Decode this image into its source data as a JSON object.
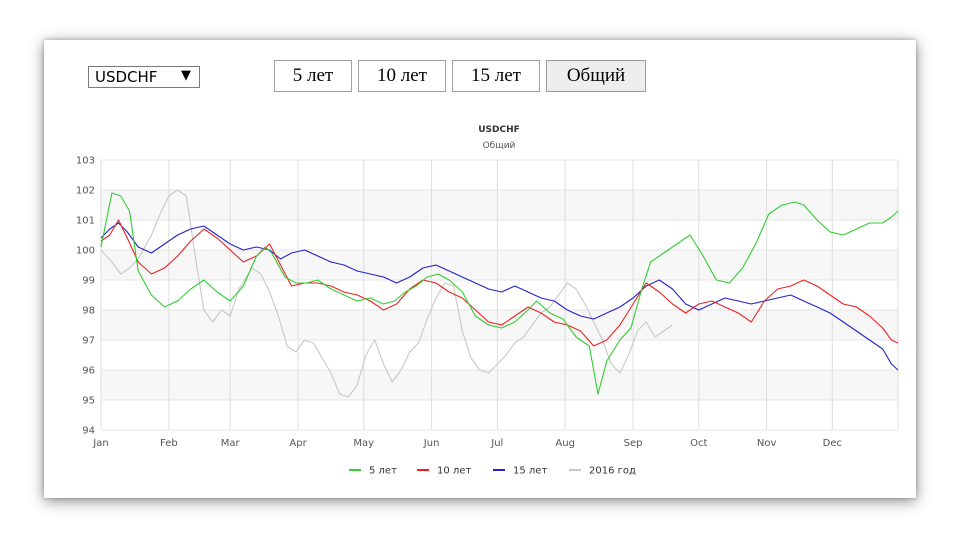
{
  "controls": {
    "symbol_select": {
      "value": "USDCHF",
      "arrow": "▼"
    },
    "period_buttons": [
      {
        "label": "5 лет",
        "active": false
      },
      {
        "label": "10 лет",
        "active": false
      },
      {
        "label": "15 лет",
        "active": false
      },
      {
        "label": "Общий",
        "active": true
      }
    ]
  },
  "chart_data": {
    "type": "line",
    "title": "USDCHF",
    "subtitle": "Общий",
    "xlabel": "",
    "ylabel": "",
    "x_tick_labels": [
      "Jan",
      "Feb",
      "Mar",
      "Apr",
      "May",
      "Jun",
      "Jul",
      "Aug",
      "Sep",
      "Oct",
      "Nov",
      "Dec"
    ],
    "y_ticks": [
      94,
      95,
      96,
      97,
      98,
      99,
      100,
      101,
      102,
      103
    ],
    "ylim": [
      94,
      103
    ],
    "xlim": [
      1,
      365
    ],
    "grid": true,
    "legend_position": "bottom",
    "series": [
      {
        "name": "5 лет",
        "color": "#33cc33",
        "points": [
          [
            1,
            100.1
          ],
          [
            6,
            101.9
          ],
          [
            10,
            101.8
          ],
          [
            14,
            101.3
          ],
          [
            18,
            99.3
          ],
          [
            24,
            98.5
          ],
          [
            30,
            98.1
          ],
          [
            36,
            98.3
          ],
          [
            42,
            98.7
          ],
          [
            48,
            99.0
          ],
          [
            54,
            98.6
          ],
          [
            60,
            98.3
          ],
          [
            66,
            98.8
          ],
          [
            72,
            99.8
          ],
          [
            76,
            100.1
          ],
          [
            79,
            99.9
          ],
          [
            85,
            99.1
          ],
          [
            90,
            98.9
          ],
          [
            95,
            98.9
          ],
          [
            100,
            99.0
          ],
          [
            106,
            98.7
          ],
          [
            112,
            98.5
          ],
          [
            118,
            98.3
          ],
          [
            124,
            98.4
          ],
          [
            130,
            98.2
          ],
          [
            135,
            98.3
          ],
          [
            140,
            98.6
          ],
          [
            145,
            98.8
          ],
          [
            150,
            99.1
          ],
          [
            155,
            99.2
          ],
          [
            160,
            99.0
          ],
          [
            166,
            98.6
          ],
          [
            172,
            97.8
          ],
          [
            178,
            97.5
          ],
          [
            184,
            97.4
          ],
          [
            190,
            97.6
          ],
          [
            196,
            98.0
          ],
          [
            200,
            98.3
          ],
          [
            206,
            97.9
          ],
          [
            212,
            97.7
          ],
          [
            218,
            97.1
          ],
          [
            224,
            96.8
          ],
          [
            228,
            95.2
          ],
          [
            232,
            96.3
          ],
          [
            238,
            97.0
          ],
          [
            243,
            97.4
          ],
          [
            248,
            98.7
          ],
          [
            252,
            99.6
          ],
          [
            258,
            99.9
          ],
          [
            264,
            100.2
          ],
          [
            270,
            100.5
          ],
          [
            276,
            99.8
          ],
          [
            282,
            99.0
          ],
          [
            288,
            98.9
          ],
          [
            294,
            99.4
          ],
          [
            300,
            100.2
          ],
          [
            306,
            101.2
          ],
          [
            312,
            101.5
          ],
          [
            318,
            101.6
          ],
          [
            322,
            101.5
          ],
          [
            328,
            101.0
          ],
          [
            334,
            100.6
          ],
          [
            340,
            100.5
          ],
          [
            346,
            100.7
          ],
          [
            352,
            100.9
          ],
          [
            358,
            100.9
          ],
          [
            362,
            101.1
          ],
          [
            365,
            101.3
          ]
        ]
      },
      {
        "name": "10 лет",
        "color": "#ee2222",
        "points": [
          [
            1,
            100.3
          ],
          [
            5,
            100.5
          ],
          [
            9,
            101.0
          ],
          [
            13,
            100.4
          ],
          [
            18,
            99.6
          ],
          [
            24,
            99.2
          ],
          [
            30,
            99.4
          ],
          [
            36,
            99.8
          ],
          [
            42,
            100.3
          ],
          [
            48,
            100.7
          ],
          [
            54,
            100.4
          ],
          [
            60,
            100.0
          ],
          [
            66,
            99.6
          ],
          [
            72,
            99.8
          ],
          [
            78,
            100.2
          ],
          [
            83,
            99.5
          ],
          [
            88,
            98.8
          ],
          [
            94,
            98.9
          ],
          [
            100,
            98.9
          ],
          [
            106,
            98.8
          ],
          [
            112,
            98.6
          ],
          [
            118,
            98.5
          ],
          [
            124,
            98.3
          ],
          [
            130,
            98.0
          ],
          [
            136,
            98.2
          ],
          [
            142,
            98.7
          ],
          [
            148,
            99.0
          ],
          [
            154,
            98.9
          ],
          [
            160,
            98.6
          ],
          [
            166,
            98.4
          ],
          [
            172,
            98.0
          ],
          [
            178,
            97.6
          ],
          [
            184,
            97.5
          ],
          [
            190,
            97.8
          ],
          [
            196,
            98.1
          ],
          [
            202,
            97.9
          ],
          [
            208,
            97.6
          ],
          [
            214,
            97.5
          ],
          [
            220,
            97.3
          ],
          [
            226,
            96.8
          ],
          [
            232,
            97.0
          ],
          [
            238,
            97.5
          ],
          [
            244,
            98.2
          ],
          [
            250,
            98.9
          ],
          [
            256,
            98.6
          ],
          [
            262,
            98.2
          ],
          [
            268,
            97.9
          ],
          [
            274,
            98.2
          ],
          [
            280,
            98.3
          ],
          [
            286,
            98.1
          ],
          [
            292,
            97.9
          ],
          [
            298,
            97.6
          ],
          [
            304,
            98.3
          ],
          [
            310,
            98.7
          ],
          [
            316,
            98.8
          ],
          [
            322,
            99.0
          ],
          [
            328,
            98.8
          ],
          [
            334,
            98.5
          ],
          [
            340,
            98.2
          ],
          [
            346,
            98.1
          ],
          [
            352,
            97.8
          ],
          [
            358,
            97.4
          ],
          [
            362,
            97.0
          ],
          [
            365,
            96.9
          ]
        ]
      },
      {
        "name": "15 лет",
        "color": "#2222cc",
        "points": [
          [
            1,
            100.4
          ],
          [
            5,
            100.7
          ],
          [
            9,
            100.9
          ],
          [
            13,
            100.6
          ],
          [
            18,
            100.1
          ],
          [
            24,
            99.9
          ],
          [
            30,
            100.2
          ],
          [
            36,
            100.5
          ],
          [
            42,
            100.7
          ],
          [
            48,
            100.8
          ],
          [
            54,
            100.5
          ],
          [
            60,
            100.2
          ],
          [
            66,
            100.0
          ],
          [
            72,
            100.1
          ],
          [
            78,
            100.0
          ],
          [
            83,
            99.7
          ],
          [
            88,
            99.9
          ],
          [
            94,
            100.0
          ],
          [
            100,
            99.8
          ],
          [
            106,
            99.6
          ],
          [
            112,
            99.5
          ],
          [
            118,
            99.3
          ],
          [
            124,
            99.2
          ],
          [
            130,
            99.1
          ],
          [
            136,
            98.9
          ],
          [
            142,
            99.1
          ],
          [
            148,
            99.4
          ],
          [
            154,
            99.5
          ],
          [
            160,
            99.3
          ],
          [
            166,
            99.1
          ],
          [
            172,
            98.9
          ],
          [
            178,
            98.7
          ],
          [
            184,
            98.6
          ],
          [
            190,
            98.8
          ],
          [
            196,
            98.6
          ],
          [
            202,
            98.4
          ],
          [
            208,
            98.3
          ],
          [
            214,
            98.0
          ],
          [
            220,
            97.8
          ],
          [
            226,
            97.7
          ],
          [
            232,
            97.9
          ],
          [
            238,
            98.1
          ],
          [
            244,
            98.4
          ],
          [
            250,
            98.8
          ],
          [
            256,
            99.0
          ],
          [
            262,
            98.7
          ],
          [
            268,
            98.2
          ],
          [
            274,
            98.0
          ],
          [
            280,
            98.2
          ],
          [
            286,
            98.4
          ],
          [
            292,
            98.3
          ],
          [
            298,
            98.2
          ],
          [
            304,
            98.3
          ],
          [
            310,
            98.4
          ],
          [
            316,
            98.5
          ],
          [
            322,
            98.3
          ],
          [
            328,
            98.1
          ],
          [
            334,
            97.9
          ],
          [
            340,
            97.6
          ],
          [
            346,
            97.3
          ],
          [
            352,
            97.0
          ],
          [
            358,
            96.7
          ],
          [
            362,
            96.2
          ],
          [
            365,
            96.0
          ]
        ]
      },
      {
        "name": "2016 год",
        "color": "#c8c8c8",
        "points": [
          [
            1,
            100.0
          ],
          [
            6,
            99.6
          ],
          [
            10,
            99.2
          ],
          [
            14,
            99.4
          ],
          [
            18,
            99.7
          ],
          [
            24,
            100.5
          ],
          [
            28,
            101.2
          ],
          [
            32,
            101.8
          ],
          [
            36,
            102.0
          ],
          [
            40,
            101.8
          ],
          [
            44,
            99.8
          ],
          [
            48,
            98.0
          ],
          [
            52,
            97.6
          ],
          [
            56,
            98.0
          ],
          [
            60,
            97.8
          ],
          [
            64,
            98.7
          ],
          [
            70,
            99.4
          ],
          [
            74,
            99.2
          ],
          [
            78,
            98.6
          ],
          [
            82,
            97.8
          ],
          [
            86,
            96.8
          ],
          [
            90,
            96.6
          ],
          [
            94,
            97.0
          ],
          [
            98,
            96.9
          ],
          [
            102,
            96.4
          ],
          [
            106,
            95.9
          ],
          [
            110,
            95.2
          ],
          [
            114,
            95.1
          ],
          [
            118,
            95.5
          ],
          [
            122,
            96.5
          ],
          [
            126,
            97.0
          ],
          [
            130,
            96.2
          ],
          [
            134,
            95.6
          ],
          [
            138,
            96.0
          ],
          [
            142,
            96.6
          ],
          [
            146,
            96.9
          ],
          [
            150,
            97.7
          ],
          [
            154,
            98.4
          ],
          [
            158,
            98.9
          ],
          [
            162,
            98.8
          ],
          [
            166,
            97.3
          ],
          [
            170,
            96.4
          ],
          [
            174,
            96.0
          ],
          [
            178,
            95.9
          ],
          [
            182,
            96.2
          ],
          [
            186,
            96.5
          ],
          [
            190,
            96.9
          ],
          [
            194,
            97.1
          ],
          [
            198,
            97.5
          ],
          [
            202,
            97.9
          ],
          [
            206,
            98.1
          ],
          [
            210,
            98.5
          ],
          [
            214,
            98.9
          ],
          [
            218,
            98.7
          ],
          [
            222,
            98.2
          ],
          [
            226,
            97.6
          ],
          [
            230,
            97.0
          ],
          [
            234,
            96.2
          ],
          [
            238,
            95.9
          ],
          [
            242,
            96.5
          ],
          [
            246,
            97.3
          ],
          [
            250,
            97.6
          ],
          [
            254,
            97.1
          ],
          [
            258,
            97.3
          ],
          [
            262,
            97.5
          ]
        ]
      }
    ]
  }
}
